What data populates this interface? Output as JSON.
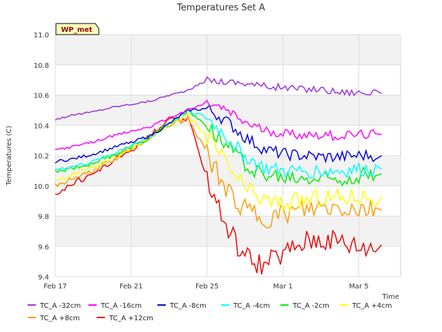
{
  "chart_data": {
    "type": "line",
    "title": "Temperatures Set A",
    "xlabel": "Time",
    "ylabel": "Temperatures (C)",
    "badge": "WP_met",
    "x_ticks": [
      "Feb 17",
      "Feb 21",
      "Feb 25",
      "Mar 1",
      "Mar 5"
    ],
    "y_ticks": [
      "9.4",
      "9.6",
      "9.8",
      "10.0",
      "10.2",
      "10.4",
      "10.6",
      "10.8",
      "11.0"
    ],
    "ylim": [
      9.4,
      11.0
    ],
    "xlim": [
      "Feb 17",
      "Mar 7"
    ],
    "grid": true,
    "legend_position": "bottom",
    "x": [
      "Feb 17",
      "Feb 18",
      "Feb 19",
      "Feb 20",
      "Feb 21",
      "Feb 22",
      "Feb 23",
      "Feb 24",
      "Feb 25",
      "Feb 26",
      "Feb 27",
      "Feb 28",
      "Mar 1",
      "Mar 2",
      "Mar 3",
      "Mar 4",
      "Mar 5",
      "Mar 6"
    ],
    "series": [
      {
        "name": "TC_A -32cm",
        "color": "#9b30e0",
        "values": [
          10.44,
          10.47,
          10.49,
          10.52,
          10.54,
          10.56,
          10.6,
          10.63,
          10.7,
          10.69,
          10.68,
          10.66,
          10.65,
          10.64,
          10.64,
          10.62,
          10.62,
          10.61
        ]
      },
      {
        "name": "TC_A -16cm",
        "color": "#ff00ff",
        "values": [
          10.24,
          10.26,
          10.29,
          10.33,
          10.36,
          10.39,
          10.45,
          10.5,
          10.55,
          10.5,
          10.42,
          10.37,
          10.35,
          10.34,
          10.34,
          10.33,
          10.34,
          10.34
        ]
      },
      {
        "name": "TC_A -8cm",
        "color": "#0000dd",
        "values": [
          10.16,
          10.18,
          10.21,
          10.25,
          10.29,
          10.33,
          10.41,
          10.5,
          10.51,
          10.43,
          10.32,
          10.24,
          10.21,
          10.2,
          10.19,
          10.19,
          10.2,
          10.2
        ]
      },
      {
        "name": "TC_A -4cm",
        "color": "#00ffff",
        "values": [
          10.11,
          10.13,
          10.16,
          10.21,
          10.27,
          10.32,
          10.41,
          10.5,
          10.45,
          10.33,
          10.2,
          10.12,
          10.1,
          10.1,
          10.1,
          10.1,
          10.11,
          10.11
        ]
      },
      {
        "name": "TC_A -2cm",
        "color": "#00ee00",
        "values": [
          10.09,
          10.12,
          10.15,
          10.2,
          10.26,
          10.32,
          10.42,
          10.49,
          10.41,
          10.28,
          10.15,
          10.07,
          10.05,
          10.05,
          10.05,
          10.05,
          10.07,
          10.08
        ]
      },
      {
        "name": "TC_A +4cm",
        "color": "#ffff00",
        "values": [
          10.04,
          10.08,
          10.12,
          10.18,
          10.25,
          10.32,
          10.41,
          10.46,
          10.33,
          10.14,
          9.98,
          9.9,
          9.88,
          9.9,
          9.92,
          9.92,
          9.93,
          9.93
        ]
      },
      {
        "name": "TC_A +8cm",
        "color": "#ff9900",
        "values": [
          10.0,
          10.05,
          10.1,
          10.17,
          10.24,
          10.32,
          10.41,
          10.44,
          10.22,
          9.97,
          9.84,
          9.78,
          9.8,
          9.83,
          9.85,
          9.85,
          9.84,
          9.84
        ]
      },
      {
        "name": "TC_A +12cm",
        "color": "#ee0000",
        "values": [
          9.95,
          10.02,
          10.08,
          10.16,
          10.24,
          10.33,
          10.43,
          10.44,
          10.06,
          9.74,
          9.54,
          9.48,
          9.55,
          9.63,
          9.66,
          9.64,
          9.6,
          9.61
        ]
      }
    ]
  }
}
